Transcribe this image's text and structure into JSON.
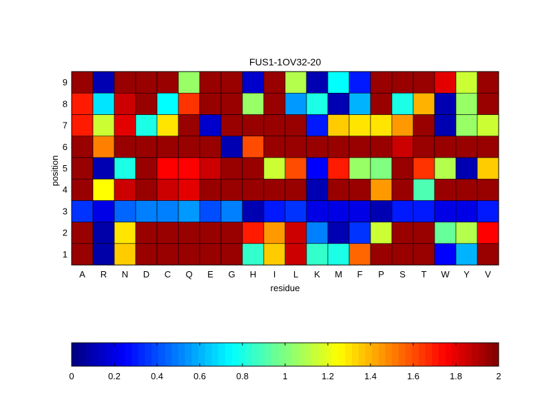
{
  "chart_data": {
    "type": "heatmap",
    "title": "FUS1-1OV32-20",
    "xlabel": "residue",
    "ylabel": "position",
    "x_categories": [
      "A",
      "R",
      "N",
      "D",
      "C",
      "Q",
      "E",
      "G",
      "H",
      "I",
      "L",
      "K",
      "M",
      "F",
      "P",
      "S",
      "T",
      "W",
      "Y",
      "V"
    ],
    "y_categories": [
      "1",
      "2",
      "3",
      "4",
      "5",
      "6",
      "7",
      "8",
      "9"
    ],
    "value_range": [
      0,
      2
    ],
    "colormap": "jet",
    "grid": true,
    "colorbar": {
      "placement": "bottom",
      "ticks": [
        "0",
        "0.2",
        "0.4",
        "0.6",
        "0.8",
        "1",
        "1.2",
        "1.4",
        "1.6",
        "1.8",
        "2"
      ],
      "steps": 64
    },
    "values": [
      [
        1.95,
        0.08,
        1.35,
        1.95,
        1.95,
        1.95,
        1.95,
        1.95,
        0.85,
        1.35,
        1.85,
        0.85,
        0.8,
        1.55,
        1.95,
        1.95,
        1.95,
        0.25,
        0.6,
        1.95
      ],
      [
        1.95,
        0.08,
        1.3,
        1.95,
        1.95,
        1.95,
        1.95,
        1.95,
        1.7,
        1.45,
        1.85,
        0.5,
        0.1,
        0.35,
        1.15,
        1.95,
        1.95,
        0.95,
        1.1,
        1.75
      ],
      [
        0.35,
        0.2,
        0.45,
        0.5,
        0.5,
        0.55,
        0.4,
        0.5,
        0.1,
        0.3,
        0.35,
        0.2,
        0.2,
        0.2,
        0.1,
        0.3,
        0.3,
        0.2,
        0.2,
        0.3
      ],
      [
        1.95,
        1.25,
        1.85,
        1.95,
        1.85,
        1.8,
        1.95,
        1.95,
        1.95,
        1.95,
        1.95,
        0.1,
        1.95,
        1.95,
        1.45,
        1.95,
        0.9,
        1.95,
        1.95,
        1.95
      ],
      [
        1.95,
        0.1,
        0.8,
        1.95,
        1.75,
        1.75,
        1.85,
        1.95,
        1.95,
        1.15,
        1.6,
        0.25,
        1.7,
        1.05,
        1.0,
        1.95,
        1.65,
        1.1,
        0.1,
        1.35
      ],
      [
        1.95,
        1.5,
        1.95,
        1.95,
        1.95,
        1.95,
        1.95,
        0.1,
        1.6,
        1.95,
        1.95,
        1.95,
        1.95,
        1.95,
        1.95,
        1.85,
        1.95,
        1.95,
        1.95,
        1.95
      ],
      [
        1.7,
        1.15,
        1.8,
        0.8,
        1.3,
        1.95,
        0.15,
        1.95,
        1.95,
        1.95,
        1.95,
        0.3,
        1.35,
        1.3,
        1.3,
        1.45,
        1.95,
        0.1,
        1.05,
        1.15
      ],
      [
        1.7,
        0.7,
        1.85,
        1.95,
        0.75,
        1.65,
        1.95,
        1.95,
        1.05,
        1.95,
        0.55,
        0.8,
        0.1,
        0.6,
        1.95,
        0.8,
        1.4,
        0.1,
        1.05,
        1.95
      ],
      [
        1.95,
        0.1,
        1.95,
        1.95,
        1.95,
        1.05,
        1.95,
        1.95,
        0.15,
        1.95,
        1.1,
        0.1,
        0.75,
        0.3,
        1.95,
        1.95,
        1.95,
        1.8,
        1.15,
        1.95
      ]
    ]
  }
}
